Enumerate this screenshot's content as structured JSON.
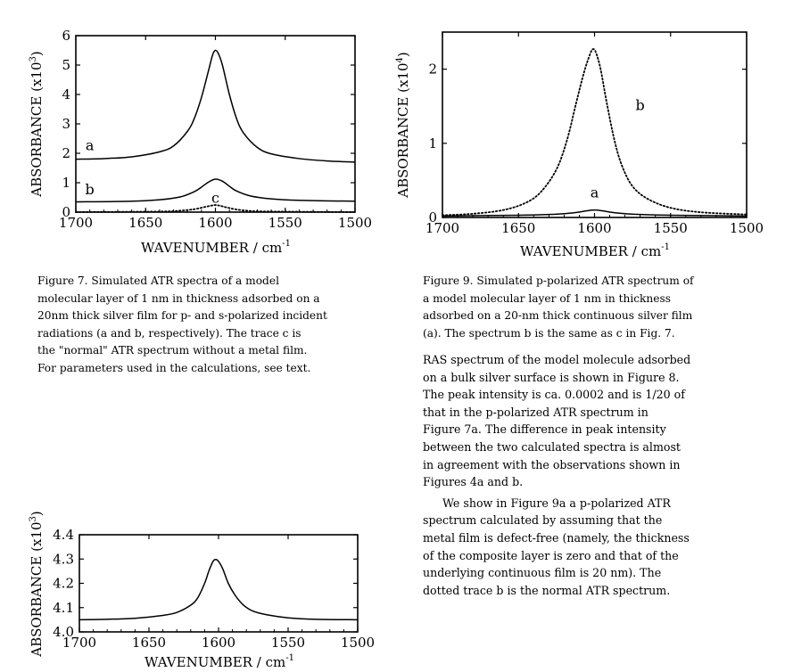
{
  "chart_data": [
    {
      "type": "line",
      "label": "fig7",
      "xlabel": "WAVENUMBER / cm",
      "xlabel_sup": "-1",
      "ylabel": "ABSORBANCE (x10",
      "ylabel_sup": "3",
      "ylabel_close": ")",
      "xlim": [
        1700,
        1500
      ],
      "ylim": [
        0,
        6
      ],
      "xticks": [
        "1700",
        "1650",
        "1600",
        "1550",
        "1500"
      ],
      "yticks": [
        "0",
        "1",
        "2",
        "3",
        "4",
        "5",
        "6"
      ],
      "series": [
        {
          "name": "a",
          "style": "solid",
          "x": [
            1700,
            1680,
            1660,
            1640,
            1630,
            1620,
            1615,
            1610,
            1605,
            1602,
            1600,
            1598,
            1595,
            1590,
            1585,
            1580,
            1570,
            1560,
            1540,
            1520,
            1500
          ],
          "y": [
            1.8,
            1.82,
            1.88,
            2.05,
            2.25,
            2.75,
            3.2,
            3.9,
            4.8,
            5.35,
            5.5,
            5.4,
            5.0,
            4.0,
            3.2,
            2.7,
            2.2,
            1.98,
            1.82,
            1.74,
            1.7
          ]
        },
        {
          "name": "b",
          "style": "solid",
          "x": [
            1700,
            1660,
            1640,
            1625,
            1615,
            1610,
            1605,
            1600,
            1595,
            1590,
            1585,
            1575,
            1560,
            1540,
            1500
          ],
          "y": [
            0.35,
            0.37,
            0.42,
            0.52,
            0.7,
            0.85,
            1.02,
            1.12,
            1.05,
            0.88,
            0.72,
            0.55,
            0.45,
            0.4,
            0.37
          ]
        },
        {
          "name": "c",
          "style": "dotted",
          "x": [
            1700,
            1640,
            1625,
            1615,
            1608,
            1603,
            1600,
            1597,
            1592,
            1585,
            1575,
            1560,
            1500
          ],
          "y": [
            0.0,
            0.02,
            0.05,
            0.1,
            0.17,
            0.22,
            0.24,
            0.22,
            0.16,
            0.09,
            0.04,
            0.02,
            0.0
          ]
        }
      ],
      "annotations": [
        "a",
        "b",
        "c"
      ]
    },
    {
      "type": "line",
      "label": "fig9",
      "xlabel": "WAVENUMBER / cm",
      "xlabel_sup": "-1",
      "ylabel": "ABSORBANCE (x10",
      "ylabel_sup": "4",
      "ylabel_close": ")",
      "xlim": [
        1700,
        1500
      ],
      "ylim": [
        0,
        2.5
      ],
      "xticks": [
        "1700",
        "1650",
        "1600",
        "1550",
        "1500"
      ],
      "yticks": [
        "0",
        "1",
        "2"
      ],
      "series": [
        {
          "name": "a",
          "style": "solid",
          "x": [
            1700,
            1650,
            1630,
            1615,
            1605,
            1600,
            1595,
            1585,
            1570,
            1550,
            1500
          ],
          "y": [
            0.02,
            0.03,
            0.04,
            0.06,
            0.09,
            0.1,
            0.09,
            0.06,
            0.04,
            0.03,
            0.02
          ]
        },
        {
          "name": "b",
          "style": "dotted",
          "x": [
            1700,
            1680,
            1660,
            1645,
            1635,
            1625,
            1618,
            1612,
            1607,
            1603,
            1601,
            1599,
            1596,
            1592,
            1587,
            1582,
            1575,
            1565,
            1550,
            1530,
            1500
          ],
          "y": [
            0.03,
            0.05,
            0.1,
            0.2,
            0.35,
            0.65,
            1.05,
            1.55,
            1.95,
            2.2,
            2.27,
            2.22,
            2.0,
            1.55,
            1.05,
            0.7,
            0.42,
            0.25,
            0.13,
            0.07,
            0.04
          ]
        }
      ],
      "annotations": [
        "a",
        "b"
      ]
    },
    {
      "type": "line",
      "label": "fig8",
      "xlabel": "WAVENUMBER / cm",
      "xlabel_sup": "-1",
      "ylabel": "ABSORBANCE (x10",
      "ylabel_sup": "3",
      "ylabel_close": ")",
      "xlim": [
        1700,
        1500
      ],
      "ylim": [
        4.0,
        4.4
      ],
      "xticks": [
        "1700",
        "1650",
        "1600",
        "1550",
        "1500"
      ],
      "yticks": [
        "4.0",
        "4.1",
        "4.2",
        "4.3",
        "4.4"
      ],
      "series": [
        {
          "name": "",
          "style": "solid",
          "x": [
            1700,
            1680,
            1660,
            1640,
            1630,
            1620,
            1615,
            1610,
            1607,
            1604,
            1602,
            1600,
            1597,
            1593,
            1588,
            1582,
            1575,
            1565,
            1550,
            1530,
            1500
          ],
          "y": [
            4.05,
            4.052,
            4.056,
            4.068,
            4.08,
            4.11,
            4.14,
            4.2,
            4.25,
            4.29,
            4.298,
            4.29,
            4.26,
            4.2,
            4.15,
            4.11,
            4.085,
            4.07,
            4.058,
            4.052,
            4.05
          ]
        }
      ],
      "annotations": []
    }
  ],
  "captions": {
    "fig7": [
      "Figure 7.   Simulated ATR spectra of a model",
      "molecular layer of 1 nm in thickness adsorbed on a",
      "20nm thick silver film for p- and s-polarized incident",
      "radiations (a and b, respectively).  The trace c is",
      "the \"normal\" ATR spectrum without a metal film.",
      "For parameters used in the calculations, see text."
    ],
    "fig9": [
      "Figure 9.  Simulated p-polarized ATR spectrum of",
      "a model molecular layer of 1 nm in thickness",
      "adsorbed on a 20-nm thick continuous silver film",
      "(a).  The spectrum b is the same as c in Fig. 7."
    ]
  },
  "body_text": {
    "para1": [
      "RAS spectrum of the model molecule adsorbed",
      "on a bulk silver surface is shown in Figure 8.",
      "The peak intensity is ca. 0.0002 and is 1/20 of",
      "that in the p-polarized ATR spectrum in",
      "Figure 7a.  The difference in peak intensity",
      "between the two calculated spectra is almost",
      "in agreement with the observations shown in",
      "Figures 4a and b."
    ],
    "para2": [
      "We show in Figure 9a a p-polarized ATR",
      "spectrum calculated by assuming that the",
      "metal film is defect-free (namely, the thickness",
      "of the composite layer is zero and that of the",
      "underlying continuous film is 20 nm).  The",
      "dotted trace b is the normal ATR spectrum."
    ]
  }
}
